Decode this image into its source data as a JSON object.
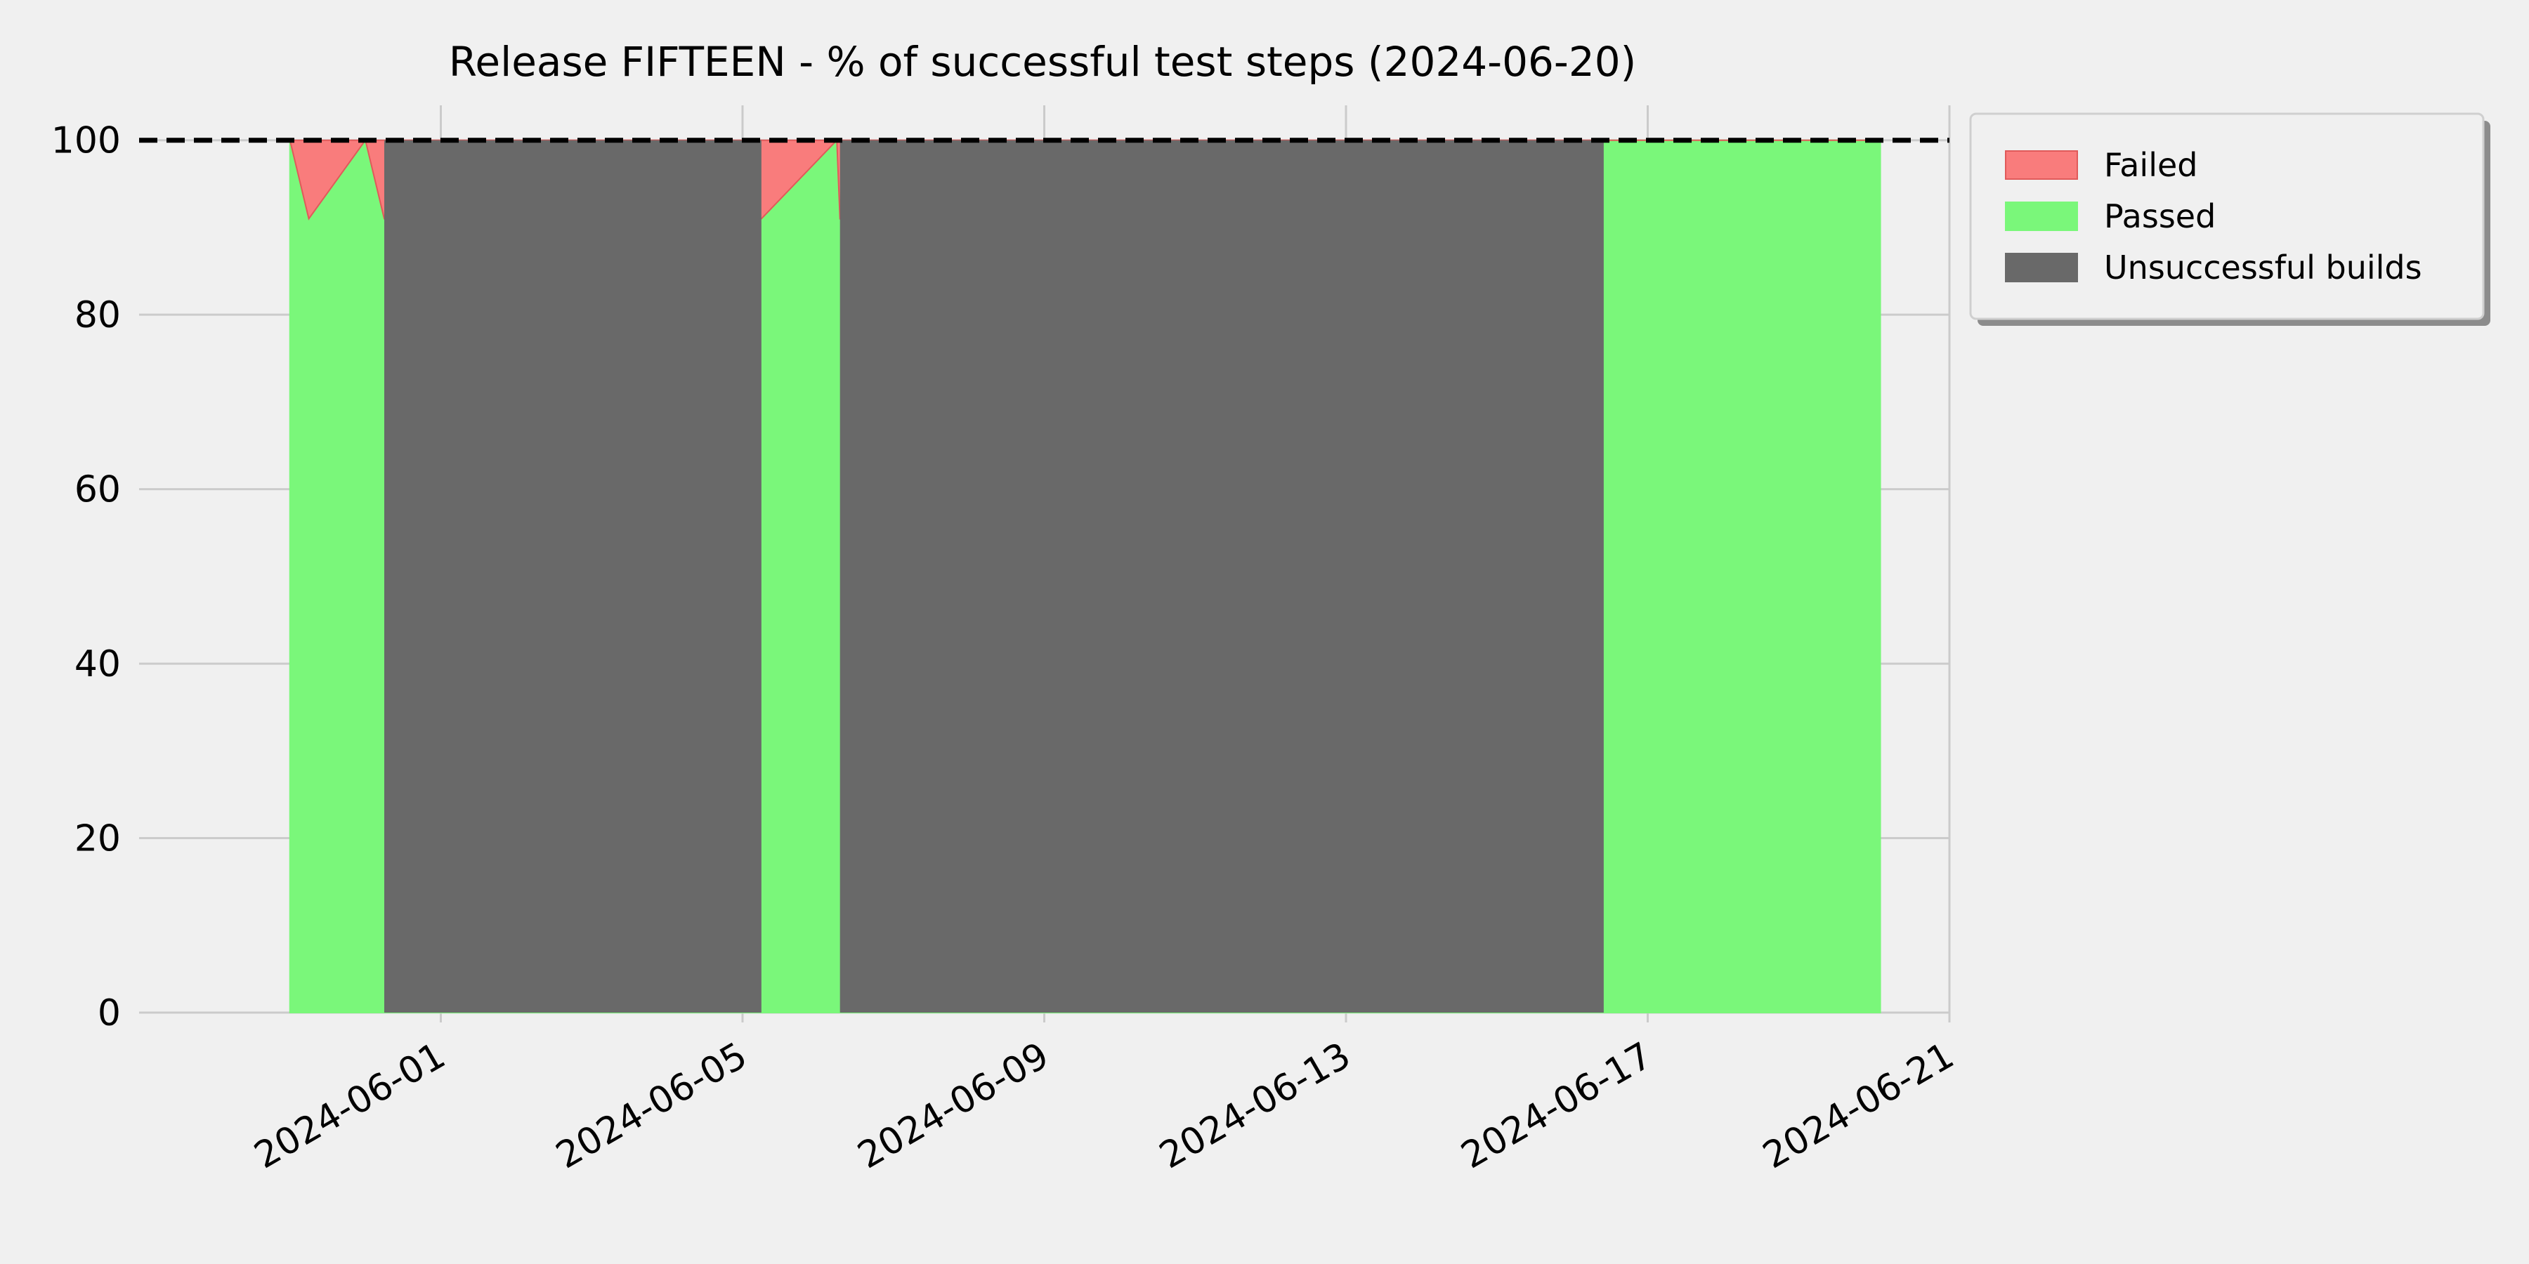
{
  "chart_data": {
    "type": "area",
    "title": "Release FIFTEEN - % of successful test steps (2024-06-20)",
    "xlabel": "",
    "ylabel": "",
    "x_axis": {
      "type": "date",
      "range": [
        "2024-05-28",
        "2024-06-21"
      ],
      "tick_labels": [
        "2024-06-01",
        "2024-06-05",
        "2024-06-09",
        "2024-06-13",
        "2024-06-17",
        "2024-06-21"
      ]
    },
    "y_axis": {
      "range": [
        0,
        104
      ],
      "tick_labels": [
        "0",
        "20",
        "40",
        "60",
        "80",
        "100"
      ]
    },
    "grid": true,
    "reference_line": {
      "y": 100,
      "style": "dashed",
      "color": "#000000"
    },
    "x": [
      "2024-05-30",
      "2024-05-30 06:00",
      "2024-05-31",
      "2024-05-31 06:00",
      "2024-06-05 06:00",
      "2024-06-06 06:00",
      "2024-06-06 07:00",
      "2024-06-16 10:00",
      "2024-06-20 02:00"
    ],
    "series": [
      {
        "name": "Passed",
        "color": "#7af77a",
        "values": [
          100,
          91,
          100,
          91,
          91,
          100,
          91,
          100,
          100
        ]
      },
      {
        "name": "Failed",
        "color": "#f97c7c",
        "values": [
          0,
          9,
          0,
          9,
          9,
          0,
          9,
          0,
          0
        ]
      }
    ],
    "unsuccessful_builds": {
      "name": "Unsuccessful builds",
      "color": "#696969",
      "periods": [
        [
          "2024-05-31 06:00",
          "2024-06-05 06:00"
        ],
        [
          "2024-06-06 07:00",
          "2024-06-16 10:00"
        ]
      ]
    },
    "legend": {
      "placement": "outside-top-right",
      "entries": [
        {
          "label": "Failed",
          "color": "#f97c7c"
        },
        {
          "label": "Passed",
          "color": "#7af77a"
        },
        {
          "label": "Unsuccessful builds",
          "color": "#696969"
        }
      ]
    }
  }
}
